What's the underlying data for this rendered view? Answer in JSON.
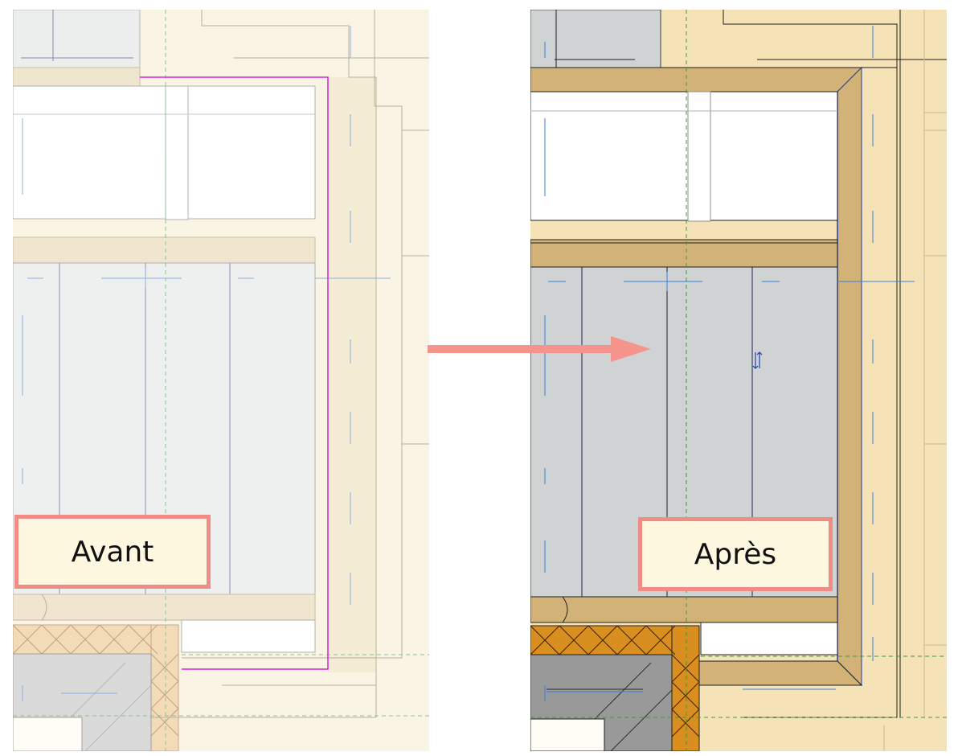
{
  "labels": {
    "before": "Avant",
    "after": "Après"
  },
  "colors": {
    "before_background": "#faf4e4",
    "before_wall_band": "#f0e6d0",
    "before_room_fill": "#eef0f0",
    "before_selection_outline": "#e020e0",
    "after_background": "#f5e2b6",
    "after_wall_fill": "#d2b277",
    "after_room_fill": "#d0d3d3",
    "after_insulation": "#d98f1f",
    "after_selected_edge": "#2040b0",
    "label_border": "#f08c86",
    "label_fill": "#fff8e1",
    "arrow": "#f5948d",
    "axis_line_blue": "#3a80d8",
    "grid_green": "#3c9a3c"
  },
  "icons": {
    "arrow": "right-arrow-icon",
    "flip_control": "flip-arrows-icon"
  }
}
